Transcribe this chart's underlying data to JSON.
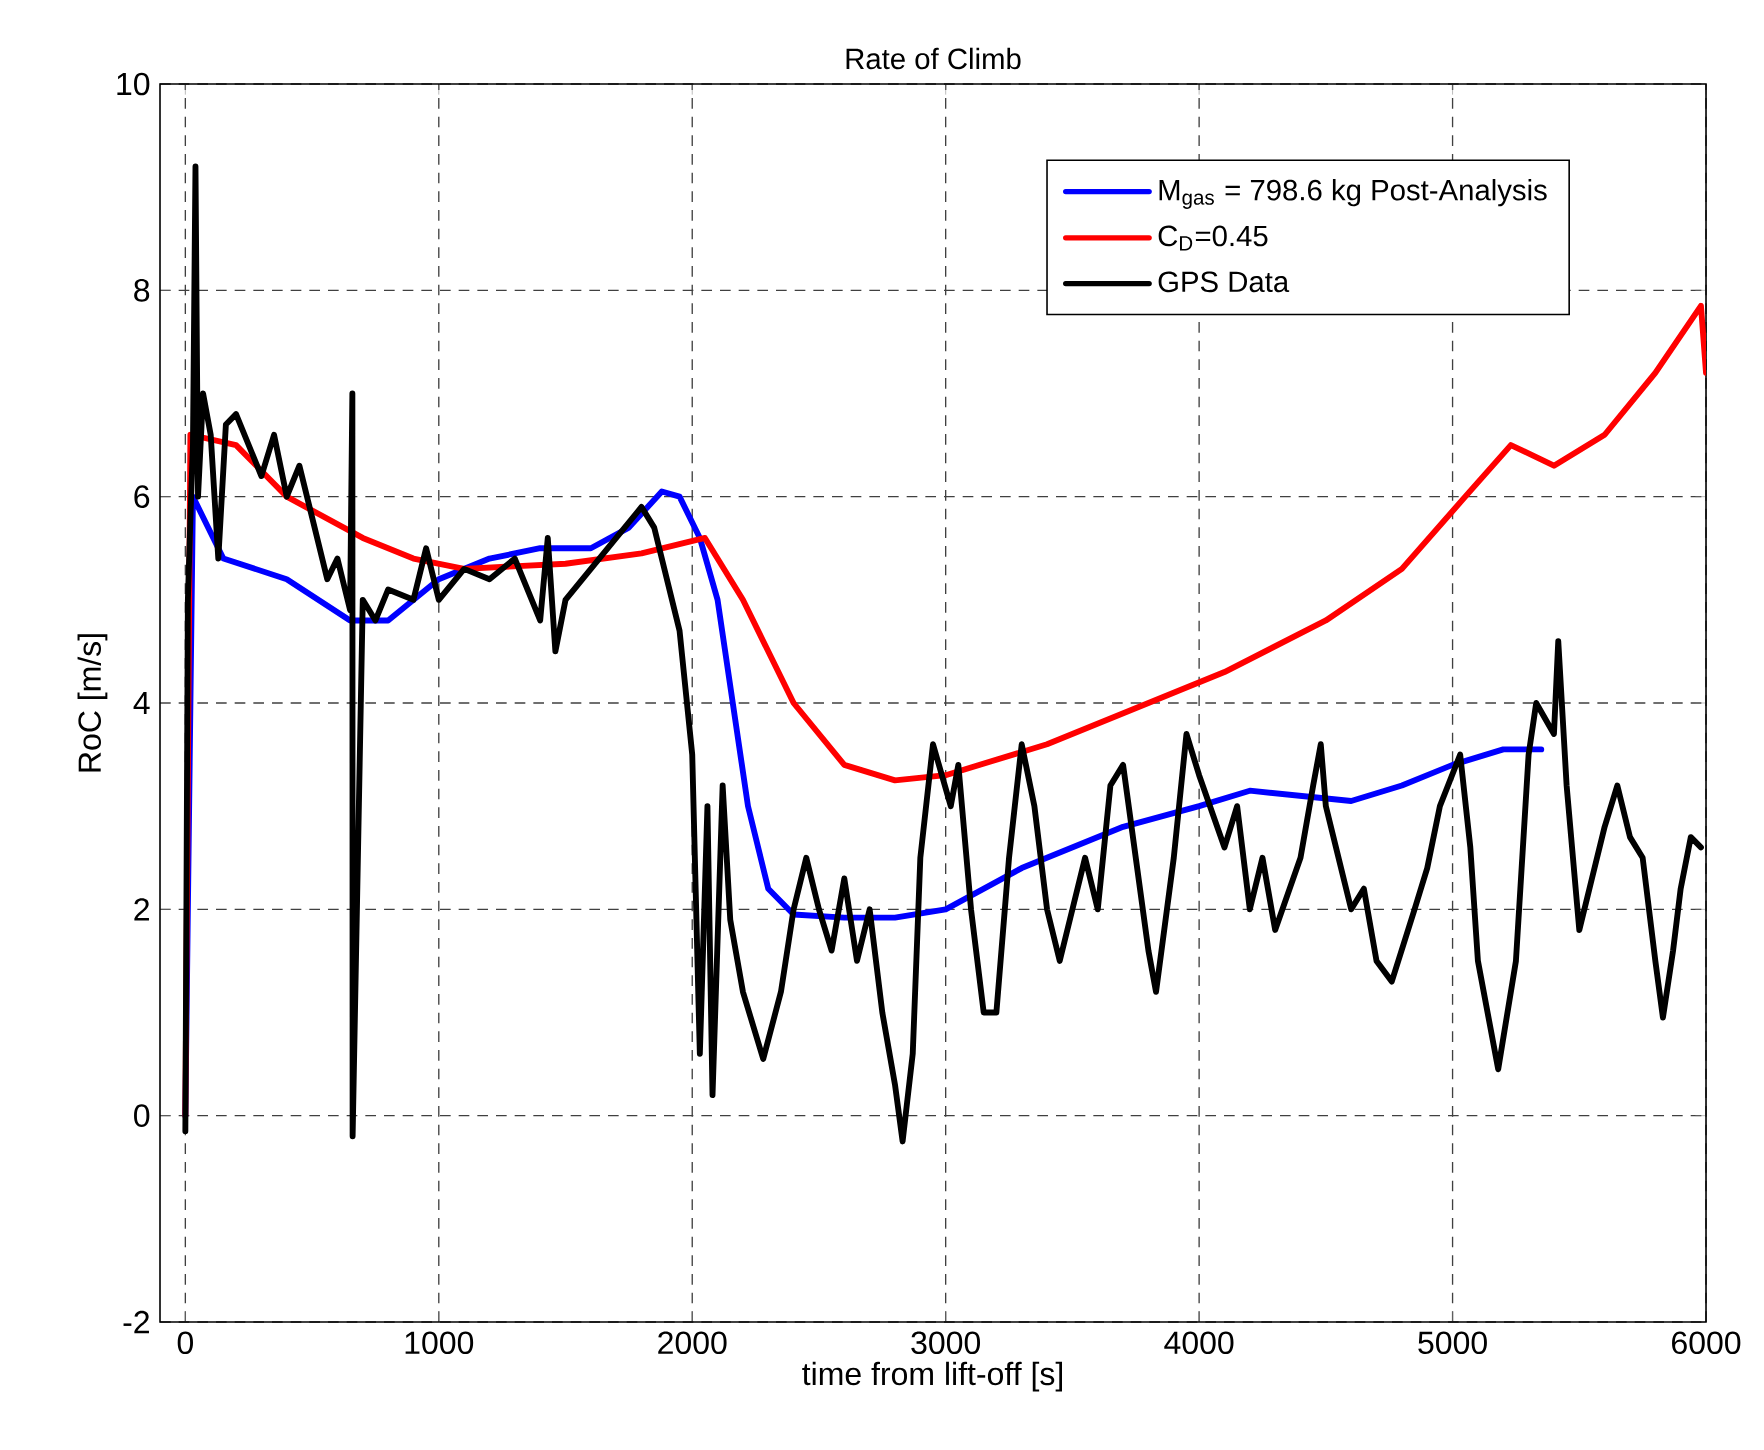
{
  "chart_data": {
    "type": "line",
    "title": "Rate of Climb",
    "xlabel": "time from lift-off [s]",
    "ylabel": "RoC [m/s]",
    "xlim": [
      -100,
      6000
    ],
    "ylim": [
      -2,
      10
    ],
    "xticks": [
      0,
      1000,
      2000,
      3000,
      4000,
      5000,
      6000
    ],
    "yticks": [
      -2,
      0,
      2,
      4,
      6,
      8,
      10
    ],
    "grid": true,
    "legend": "top right",
    "marker": "none",
    "line_style": "solid",
    "series": [
      {
        "name": "M$_{gas}$ = 798.6 kg Post-Analysis",
        "color": "#0000ff",
        "x": [
          0,
          30,
          150,
          400,
          650,
          800,
          1000,
          1200,
          1400,
          1600,
          1750,
          1880,
          1950,
          2030,
          2100,
          2220,
          2300,
          2400,
          2600,
          2800,
          3000,
          3300,
          3700,
          4000,
          4200,
          4400,
          4600,
          4800,
          5000,
          5200,
          5350
        ],
        "values": [
          0,
          6.0,
          5.4,
          5.2,
          4.8,
          4.8,
          5.2,
          5.4,
          5.5,
          5.5,
          5.7,
          6.05,
          6.0,
          5.6,
          5.0,
          3.0,
          2.2,
          1.95,
          1.92,
          1.92,
          2.0,
          2.4,
          2.8,
          3.0,
          3.15,
          3.1,
          3.05,
          3.2,
          3.4,
          3.55,
          3.55
        ]
      },
      {
        "name": "C$_{D}$=0.45",
        "color": "#ff0000",
        "x": [
          0,
          20,
          200,
          400,
          700,
          900,
          1100,
          1500,
          1800,
          2050,
          2200,
          2400,
          2600,
          2800,
          3000,
          3400,
          3800,
          4100,
          4500,
          4800,
          5050,
          5230,
          5400,
          5600,
          5800,
          5980,
          6000
        ],
        "values": [
          0,
          6.6,
          6.5,
          6.0,
          5.6,
          5.4,
          5.3,
          5.35,
          5.45,
          5.6,
          5.0,
          4.0,
          3.4,
          3.25,
          3.3,
          3.6,
          4.0,
          4.3,
          4.8,
          5.3,
          6.0,
          6.5,
          6.3,
          6.6,
          7.2,
          7.85,
          7.2
        ]
      },
      {
        "name": "GPS Data",
        "color": "#000000",
        "x": [
          0,
          10,
          20,
          30,
          40,
          50,
          70,
          100,
          130,
          160,
          200,
          250,
          300,
          350,
          400,
          450,
          500,
          560,
          600,
          650,
          659,
          660,
          700,
          750,
          800,
          900,
          950,
          1000,
          1100,
          1200,
          1300,
          1400,
          1430,
          1460,
          1500,
          1600,
          1700,
          1800,
          1850,
          1900,
          1950,
          2000,
          2030,
          2060,
          2080,
          2120,
          2150,
          2200,
          2280,
          2350,
          2400,
          2450,
          2500,
          2550,
          2600,
          2650,
          2700,
          2750,
          2800,
          2830,
          2870,
          2900,
          2950,
          3020,
          3050,
          3100,
          3150,
          3200,
          3250,
          3300,
          3350,
          3400,
          3450,
          3500,
          3550,
          3600,
          3650,
          3700,
          3750,
          3800,
          3830,
          3900,
          3950,
          4000,
          4100,
          4150,
          4200,
          4250,
          4300,
          4400,
          4450,
          4480,
          4500,
          4550,
          4600,
          4650,
          4700,
          4760,
          4850,
          4900,
          4950,
          5030,
          5070,
          5100,
          5180,
          5250,
          5300,
          5330,
          5400,
          5417,
          5450,
          5500,
          5550,
          5600,
          5650,
          5700,
          5750,
          5800,
          5830,
          5870,
          5900,
          5940,
          5980
        ],
        "values": [
          -0.15,
          5.0,
          5.8,
          6.5,
          9.2,
          6.0,
          7.0,
          6.6,
          5.4,
          6.7,
          6.8,
          6.5,
          6.2,
          6.6,
          6.0,
          6.3,
          5.8,
          5.2,
          5.4,
          4.9,
          7.0,
          -0.2,
          5.0,
          4.8,
          5.1,
          5.0,
          5.5,
          5.0,
          5.3,
          5.2,
          5.4,
          4.8,
          5.6,
          4.5,
          5.0,
          5.3,
          5.6,
          5.9,
          5.7,
          5.2,
          4.7,
          3.5,
          0.6,
          3.0,
          0.2,
          3.2,
          1.9,
          1.2,
          0.55,
          1.2,
          2.0,
          2.5,
          2.0,
          1.6,
          2.3,
          1.5,
          2.0,
          1.0,
          0.3,
          -0.25,
          0.6,
          2.5,
          3.6,
          3.0,
          3.4,
          2.0,
          1.0,
          1.0,
          2.5,
          3.6,
          3.0,
          2.0,
          1.5,
          2.0,
          2.5,
          2.0,
          3.2,
          3.4,
          2.5,
          1.6,
          1.2,
          2.5,
          3.7,
          3.3,
          2.6,
          3.0,
          2.0,
          2.5,
          1.8,
          2.5,
          3.2,
          3.6,
          3.0,
          2.5,
          2.0,
          2.2,
          1.5,
          1.3,
          2.0,
          2.4,
          3.0,
          3.5,
          2.6,
          1.5,
          0.45,
          1.5,
          3.5,
          4.0,
          3.7,
          4.6,
          3.2,
          1.8,
          2.3,
          2.8,
          3.2,
          2.7,
          2.5,
          1.5,
          0.95,
          1.6,
          2.2,
          2.7,
          2.6
        ]
      }
    ]
  }
}
